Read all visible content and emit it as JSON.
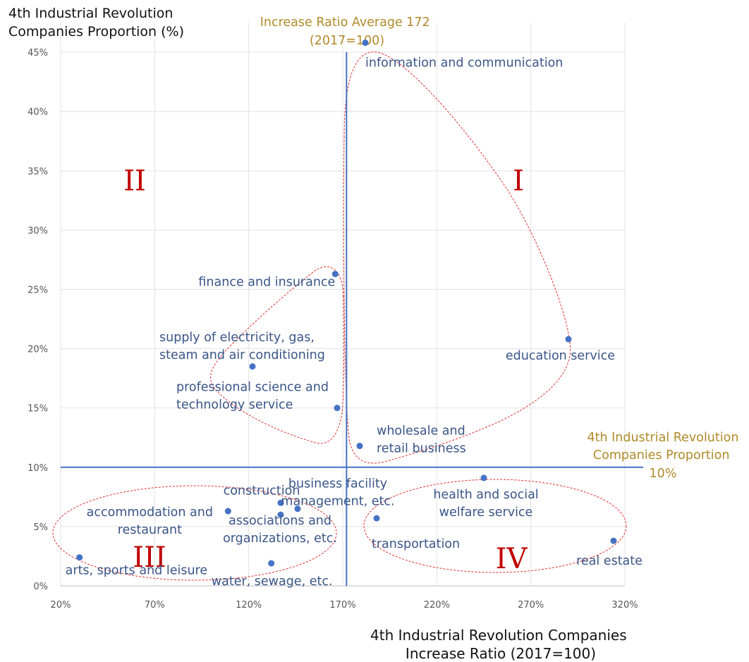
{
  "chart_data": {
    "type": "scatter",
    "ylabel": [
      "4th Industrial Revolution",
      "Companies Proportion (%)"
    ],
    "xlabel": [
      "4th Industrial Revolution Companies",
      "Increase Ratio (2017=100)"
    ],
    "x_ticks": [
      20,
      70,
      120,
      170,
      220,
      270,
      320
    ],
    "x_tick_labels": [
      "20%",
      "70%",
      "120%",
      "170%",
      "220%",
      "270%",
      "320%"
    ],
    "y_ticks": [
      0,
      5,
      10,
      15,
      20,
      25,
      30,
      35,
      40,
      45
    ],
    "y_tick_labels": [
      "0%",
      "5%",
      "10%",
      "15%",
      "20%",
      "25%",
      "30%",
      "35%",
      "40%",
      "45%"
    ],
    "xlim": [
      20,
      320
    ],
    "ylim": [
      0,
      47.5
    ],
    "grid": true,
    "ref_vertical": {
      "value": 172,
      "label": [
        "Increase Ratio Average 172",
        "(2017=100)"
      ]
    },
    "ref_horizontal": {
      "value": 10,
      "label": [
        "4th Industrial Revolution",
        "Companies Proportion",
        "10%"
      ]
    },
    "points": [
      {
        "x": 182,
        "y": 45.8,
        "label": [
          "information and communication"
        ]
      },
      {
        "x": 166,
        "y": 26.3,
        "label": [
          "finance and insurance"
        ]
      },
      {
        "x": 290,
        "y": 20.8,
        "label": [
          "education service"
        ]
      },
      {
        "x": 122,
        "y": 18.5,
        "label": [
          "supply of electricity, gas,",
          "steam and air conditioning"
        ]
      },
      {
        "x": 167,
        "y": 15.0,
        "label": [
          "professional science and",
          "technology service"
        ]
      },
      {
        "x": 179,
        "y": 11.8,
        "label": [
          "wholesale and",
          "retail business"
        ]
      },
      {
        "x": 245,
        "y": 9.1,
        "label": [
          "health and social",
          "welfare service"
        ]
      },
      {
        "x": 137,
        "y": 7.0,
        "label": [
          "construction"
        ]
      },
      {
        "x": 146,
        "y": 6.5,
        "label": [
          "business facility",
          "management, etc."
        ]
      },
      {
        "x": 109,
        "y": 6.3,
        "label": [
          "accommodation and",
          "restaurant"
        ]
      },
      {
        "x": 137,
        "y": 6.0,
        "label": [
          "associations and",
          "organizations, etc."
        ]
      },
      {
        "x": 188,
        "y": 5.7,
        "label": [
          "transportation"
        ]
      },
      {
        "x": 314,
        "y": 3.8,
        "label": [
          "real estate"
        ]
      },
      {
        "x": 30,
        "y": 2.4,
        "label": [
          "arts, sports and leisure"
        ]
      },
      {
        "x": 132,
        "y": 1.9,
        "label": [
          "water, sewage, etc."
        ]
      }
    ],
    "quadrant_labels": [
      "I",
      "II",
      "III",
      "IV"
    ],
    "colors": {
      "point": "#4472c4",
      "ref_line": "#4472c4",
      "ellipse": "#e03030",
      "quadrant": "#c00000",
      "ref_label": "#b08a2a",
      "point_label": "#3a5588"
    }
  }
}
